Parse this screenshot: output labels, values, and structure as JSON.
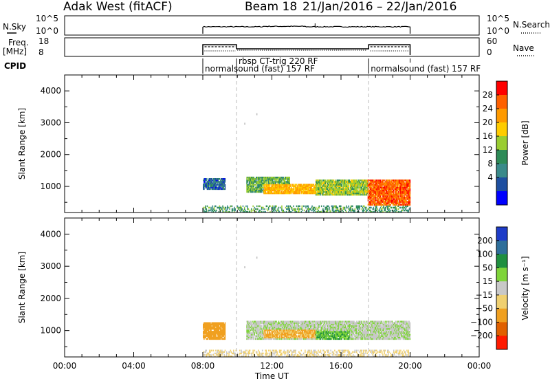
{
  "header": {
    "station": "Adak West (fitACF)",
    "beam": "Beam 18",
    "date_range": "21/Jan/2016 – 22/Jan/2016"
  },
  "top_panels": {
    "nsky_label": "N.Sky",
    "nsky_ticks": [
      "10^5",
      "10^0"
    ],
    "nsearch_label": "N.Search",
    "nsearch_ticks": [
      "10^5",
      "10^0"
    ],
    "freq_label_1": "Freq.",
    "freq_label_2": "[MHz]",
    "freq_ticks": [
      "18",
      "8"
    ],
    "nave_label": "Nave",
    "nave_ticks": [
      "60",
      "0"
    ],
    "cpid_label": "CPID",
    "cpid_segments": [
      {
        "label": "normalsound (fast) 157 RF",
        "start_hour": 8.0
      },
      {
        "label": "rbsp CT-trig 220 RF",
        "start_hour": 9.95
      },
      {
        "label": "normalsound (fast) 157 RF",
        "start_hour": 17.6
      }
    ]
  },
  "axes": {
    "xlabel": "Time UT",
    "x_ticks": [
      "00:00",
      "04:00",
      "08:00",
      "12:00",
      "16:00",
      "20:00",
      "00:00"
    ],
    "ylabel": "Slant Range [km]",
    "y_ticks": [
      "4000",
      "3000",
      "2000",
      "1000"
    ]
  },
  "power_panel": {
    "colorbar_title": "Power [dB]",
    "ticks": [
      "28",
      "24",
      "20",
      "16",
      "12",
      "8",
      "4"
    ],
    "colors": [
      "#ff0000",
      "#ff6000",
      "#ff9a00",
      "#ffcc00",
      "#9acd32",
      "#2e8b57",
      "#3a8a8a",
      "#1e4fa0",
      "#0000ff"
    ]
  },
  "velocity_panel": {
    "colorbar_title": "Velocity [m s⁻¹]",
    "ticks": [
      "200",
      "100",
      "50",
      "15",
      "−15",
      "−50",
      "−100",
      "−200"
    ],
    "colors": [
      "#1e3cc8",
      "#2e6e9a",
      "#1f8f3f",
      "#7fd43a",
      "#c8c8c8",
      "#f0d070",
      "#f0a020",
      "#e06000",
      "#ff1a00"
    ]
  },
  "chart_data": {
    "type": "heatmap",
    "x_range_hours": [
      0,
      24
    ],
    "y_range_km": [
      180,
      4500
    ],
    "data_window_hours": [
      8,
      20
    ],
    "panels": [
      {
        "name": "Power",
        "bands": [
          {
            "t0": 8.0,
            "t1": 9.3,
            "r0": 900,
            "r1": 1250,
            "value": 6
          },
          {
            "t0": 10.5,
            "t1": 13.0,
            "r0": 800,
            "r1": 1300,
            "value": 12
          },
          {
            "t0": 11.5,
            "t1": 14.5,
            "r0": 750,
            "r1": 1050,
            "value": 20
          },
          {
            "t0": 14.5,
            "t1": 17.5,
            "r0": 700,
            "r1": 1200,
            "value": 14
          },
          {
            "t0": 17.5,
            "t1": 20.0,
            "r0": 350,
            "r1": 1200,
            "value": 26
          },
          {
            "t0": 8.0,
            "t1": 20.0,
            "r0": 180,
            "r1": 400,
            "value": 10
          }
        ]
      },
      {
        "name": "Velocity",
        "bands": [
          {
            "t0": 8.0,
            "t1": 9.3,
            "r0": 700,
            "r1": 1250,
            "value": -60
          },
          {
            "t0": 10.5,
            "t1": 20.0,
            "r0": 700,
            "r1": 1300,
            "value": 0
          },
          {
            "t0": 11.5,
            "t1": 14.5,
            "r0": 750,
            "r1": 1000,
            "value": -40
          },
          {
            "t0": 14.5,
            "t1": 16.5,
            "r0": 700,
            "r1": 950,
            "value": 30
          },
          {
            "t0": 8.0,
            "t1": 20.0,
            "r0": 180,
            "r1": 400,
            "value": -20
          }
        ]
      }
    ]
  }
}
